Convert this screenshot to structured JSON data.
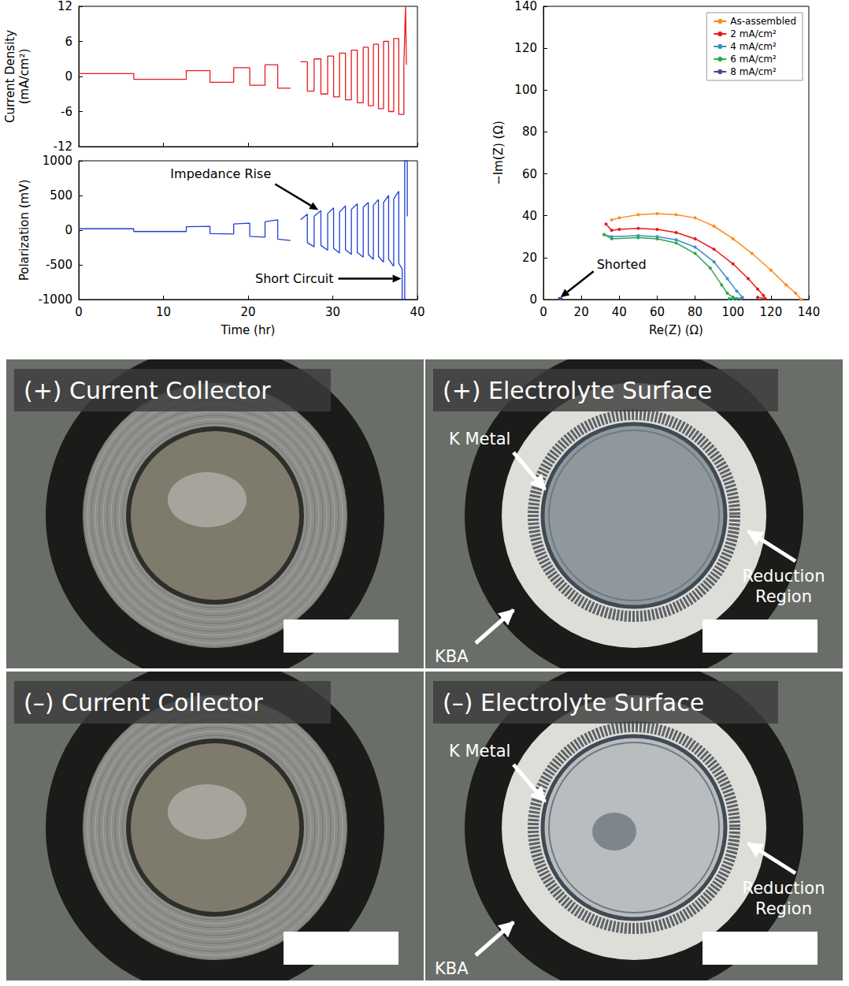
{
  "chart_data": [
    {
      "type": "line",
      "ylabel": "Current Density (mA/cm²)",
      "x": [
        0,
        6.5,
        6.5,
        12.7,
        12.7,
        15.5,
        15.5,
        18.3,
        18.3,
        20.2,
        20.2,
        22,
        22,
        23.5,
        23.5,
        25,
        25.5,
        26.2,
        27,
        27,
        27.8,
        27.8,
        28.6,
        28.6,
        29.4,
        29.4,
        30.1,
        30.1,
        30.8,
        30.8,
        31.5,
        31.5,
        32.2,
        32.2,
        32.9,
        32.9,
        33.6,
        33.6,
        34.2,
        34.2,
        34.8,
        34.8,
        35.4,
        35.4,
        36,
        36,
        36.6,
        36.6,
        37.2,
        37.2,
        37.8,
        37.8,
        38.4,
        38.4,
        38.6,
        38.7
      ],
      "values": [
        0.5,
        0.5,
        -0.5,
        -0.5,
        1,
        1,
        -1,
        -1,
        1.5,
        1.5,
        -1.5,
        -1.5,
        2,
        2,
        -2,
        -2,
        null,
        2.5,
        2.5,
        -2.5,
        -2.5,
        3,
        3,
        -3,
        -3,
        3.5,
        3.5,
        -3.5,
        -3.5,
        4,
        4,
        -4,
        -4,
        4.5,
        4.5,
        -4.5,
        -4.5,
        5,
        5,
        -5,
        -5,
        5.5,
        5.5,
        -5.5,
        -5.5,
        6,
        6,
        -6,
        -6,
        6.5,
        6.5,
        -6.5,
        -6.5,
        2,
        12,
        2
      ],
      "color": "#e8191c",
      "xlim": [
        0,
        40
      ],
      "xticks": [
        0,
        10,
        20,
        30,
        40
      ],
      "ylim": [
        -12,
        12
      ],
      "yticks": [
        -12,
        -6,
        0,
        6,
        12
      ],
      "tick_labels": "y",
      "grid": false
    },
    {
      "type": "line",
      "xlabel": "Time (hr)",
      "ylabel": "Polarization (mV)",
      "x": [
        0,
        6.5,
        6.5,
        12.7,
        12.7,
        15.5,
        15.5,
        18.3,
        18.3,
        20.2,
        20.2,
        22,
        22,
        23.5,
        23.5,
        25,
        25.5,
        26.2,
        27,
        27,
        27.8,
        27.8,
        28.6,
        28.6,
        29.4,
        29.4,
        30.1,
        30.1,
        30.8,
        30.8,
        31.5,
        31.5,
        32.2,
        32.2,
        32.9,
        32.9,
        33.6,
        33.6,
        34.2,
        34.2,
        34.8,
        34.8,
        35.4,
        35.4,
        36,
        36,
        36.6,
        36.6,
        37.2,
        37.2,
        37.8,
        37.8,
        38.2,
        38.2,
        38.5,
        38.5,
        38.8,
        38.8
      ],
      "values": [
        20,
        20,
        -20,
        -20,
        50,
        55,
        -50,
        -55,
        90,
        100,
        -90,
        -100,
        120,
        150,
        -130,
        -150,
        null,
        150,
        230,
        -180,
        -240,
        200,
        280,
        -220,
        -290,
        240,
        320,
        -260,
        -330,
        260,
        350,
        -280,
        -350,
        300,
        380,
        -320,
        -390,
        330,
        400,
        -350,
        -420,
        360,
        440,
        -380,
        -460,
        400,
        500,
        -420,
        -520,
        450,
        560,
        -480,
        -560,
        -1000,
        -1000,
        1000,
        1000,
        200
      ],
      "color": "#1f3fd6",
      "xlim": [
        0,
        40
      ],
      "xticks": [
        0,
        10,
        20,
        30,
        40
      ],
      "ylim": [
        -1000,
        1000
      ],
      "yticks": [
        -1000,
        -500,
        0,
        500,
        1000
      ],
      "grid": false,
      "annotations": [
        {
          "text": "Impedance Rise",
          "x": 28.3,
          "y": 290
        },
        {
          "text": "Short Circuit",
          "x": 38.1,
          "y": -700
        }
      ]
    },
    {
      "type": "line",
      "xlabel": "Re(Z) (Ω)",
      "ylabel": "−Im(Z) (Ω)",
      "xlim": [
        0,
        140
      ],
      "xticks": [
        0,
        20,
        40,
        60,
        80,
        100,
        120,
        140
      ],
      "ylim": [
        0,
        140
      ],
      "yticks": [
        0,
        20,
        40,
        60,
        80,
        100,
        120,
        140
      ],
      "grid": false,
      "legend": "upper right",
      "marker": "circle",
      "series": [
        {
          "name": "As-assembled",
          "color": "#ff8c1a",
          "x": [
            36,
            40,
            50,
            60,
            70,
            80,
            90,
            100,
            110,
            120,
            128,
            133,
            136
          ],
          "values": [
            38,
            39,
            40.5,
            41,
            40.5,
            39,
            35,
            29,
            22,
            14,
            7,
            3,
            0
          ]
        },
        {
          "name": "2 mA/cm²",
          "color": "#e8191c",
          "x": [
            33,
            36,
            40,
            50,
            60,
            70,
            80,
            90,
            100,
            108,
            113,
            116,
            117,
            113
          ],
          "values": [
            36,
            33,
            33.5,
            34,
            33.5,
            32,
            29,
            24,
            17,
            10,
            5,
            2,
            0.5,
            1
          ]
        },
        {
          "name": "4 mA/cm²",
          "color": "#3d8fc6",
          "x": [
            32,
            36,
            50,
            60,
            70,
            80,
            90,
            97,
            102,
            105,
            104,
            100
          ],
          "values": [
            31,
            30,
            30.5,
            30,
            28.5,
            25,
            18,
            10,
            4,
            1,
            0.5,
            0.3
          ]
        },
        {
          "name": "6 mA/cm²",
          "color": "#2fa84f",
          "x": [
            32,
            36,
            50,
            60,
            70,
            80,
            88,
            94,
            97,
            100,
            102,
            98
          ],
          "values": [
            31,
            29,
            29.5,
            29,
            27,
            22,
            15,
            7,
            3,
            1,
            0.5,
            0.4
          ]
        },
        {
          "name": "8 mA/cm²",
          "color": "#5b3a9a",
          "x": [
            8.5,
            9.5
          ],
          "values": [
            0.5,
            0.3
          ]
        }
      ],
      "annotations": [
        {
          "text": "Shorted",
          "x": 9,
          "y": 1
        }
      ]
    }
  ],
  "photos": [
    {
      "title": "(+) Current Collector",
      "labels": []
    },
    {
      "title": "(+) Electrolyte Surface",
      "labels": [
        "K Metal",
        "Reduction Region",
        "KBA"
      ]
    },
    {
      "title": "(–) Current Collector",
      "labels": []
    },
    {
      "title": "(–) Electrolyte Surface",
      "labels": [
        "K Metal",
        "Reduction Region",
        "KBA"
      ]
    }
  ]
}
